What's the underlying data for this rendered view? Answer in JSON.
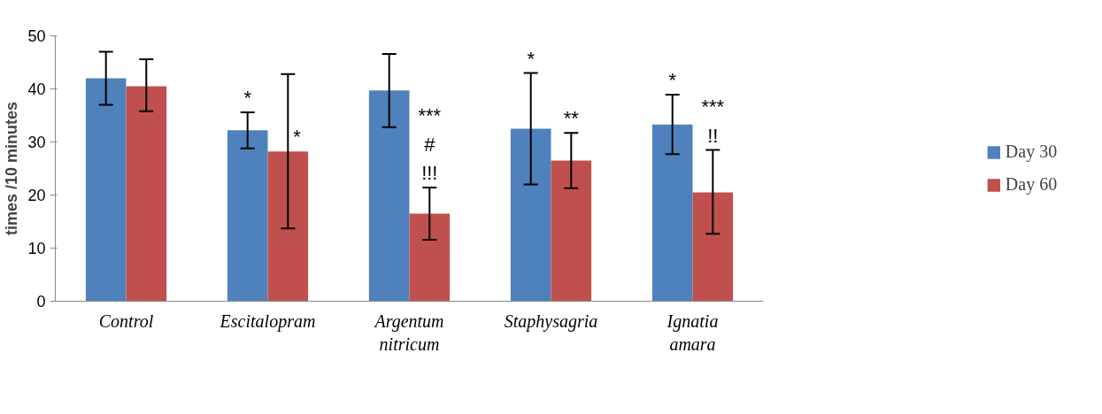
{
  "chart_data": {
    "type": "bar",
    "ylabel": "times /10 minutes",
    "categories": [
      "Control",
      "Escitalopram",
      "Argentum\nnitricum",
      "Staphysagria",
      "Ignatia\namara"
    ],
    "series": [
      {
        "name": "Day 30",
        "color": "#4f81bd",
        "values": [
          42.0,
          32.2,
          39.7,
          32.5,
          33.3
        ],
        "errors": [
          [
            37.0,
            47.0
          ],
          [
            28.8,
            35.6
          ],
          [
            32.8,
            46.6
          ],
          [
            22.0,
            43.0
          ],
          [
            27.7,
            38.9
          ]
        ],
        "value_labels": [
          null,
          "*",
          null,
          "*",
          "*"
        ]
      },
      {
        "name": "Day 60",
        "color": "#c0504d",
        "values": [
          40.5,
          28.2,
          16.5,
          26.5,
          20.5
        ],
        "errors": [
          [
            35.8,
            45.6
          ],
          [
            13.7,
            42.8
          ],
          [
            11.6,
            21.4
          ],
          [
            21.3,
            31.7
          ],
          [
            12.7,
            28.5
          ]
        ],
        "value_labels": [
          null,
          "*",
          "***\n#\n!!!",
          "**",
          "***\n!!"
        ]
      }
    ],
    "ylim": [
      0,
      50
    ],
    "yticks": [
      0,
      10,
      20,
      30,
      40,
      50
    ],
    "grid": false,
    "legend": "right"
  }
}
